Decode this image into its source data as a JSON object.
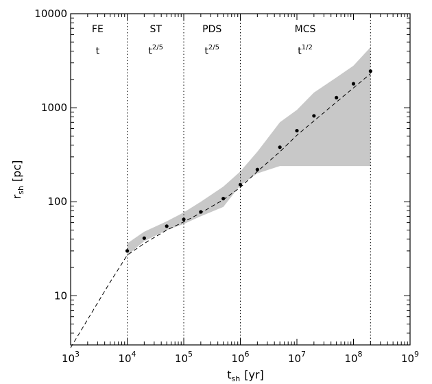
{
  "chart_data": {
    "type": "scatter",
    "title": "",
    "x_scale": "log",
    "y_scale": "log",
    "xlim": [
      1000,
      1000000000
    ],
    "ylim": [
      3,
      10000
    ],
    "x_ticks": [
      {
        "value": 1000,
        "mantissa": "10",
        "exp": "3"
      },
      {
        "value": 10000,
        "mantissa": "10",
        "exp": "4"
      },
      {
        "value": 100000,
        "mantissa": "10",
        "exp": "5"
      },
      {
        "value": 1000000,
        "mantissa": "10",
        "exp": "6"
      },
      {
        "value": 10000000,
        "mantissa": "10",
        "exp": "7"
      },
      {
        "value": 100000000,
        "mantissa": "10",
        "exp": "8"
      },
      {
        "value": 1000000000,
        "mantissa": "10",
        "exp": "9"
      }
    ],
    "y_ticks": [
      {
        "value": 10,
        "label": "10"
      },
      {
        "value": 100,
        "label": "100"
      },
      {
        "value": 1000,
        "label": "1000"
      },
      {
        "value": 10000,
        "label": "10000"
      }
    ],
    "xlabel": {
      "main": "t",
      "sub": "sh",
      "unit": "[yr]"
    },
    "ylabel": {
      "main": "r",
      "sub": "sh",
      "unit": "[pc]"
    },
    "phase_boundaries": [
      10000,
      100000,
      1000000,
      200000000
    ],
    "phases": [
      {
        "name": "FE",
        "law": "t",
        "law_exp": "",
        "x": 3000
      },
      {
        "name": "ST",
        "law": "t",
        "law_exp": "2/5",
        "x": 32000
      },
      {
        "name": "PDS",
        "law": "t",
        "law_exp": "2/5",
        "x": 316000
      },
      {
        "name": "MCS",
        "law": "t",
        "law_exp": "1/2",
        "x": 14000000
      }
    ],
    "points": {
      "x": [
        10000,
        20000,
        50000,
        100000,
        200000,
        500000,
        1000000,
        2000000,
        5000000,
        10000000,
        20000000,
        50000000,
        100000000,
        200000000
      ],
      "y": [
        30,
        41,
        55,
        65,
        78,
        108,
        152,
        220,
        380,
        570,
        820,
        1280,
        1800,
        2450
      ]
    },
    "model_line": {
      "x": [
        1000,
        5000,
        10000,
        20000,
        50000,
        100000,
        200000,
        500000,
        1000000,
        2000000,
        5000000,
        10000000,
        50000000,
        200000000
      ],
      "y": [
        2.8,
        14,
        27,
        36,
        50,
        61,
        76,
        105,
        142,
        210,
        340,
        510,
        1150,
        2300
      ]
    },
    "band": {
      "upper": {
        "x": [
          10000,
          20000,
          50000,
          100000,
          200000,
          500000,
          1000000,
          2000000,
          5000000,
          10000000,
          20000000,
          50000000,
          100000000,
          200000000
        ],
        "y": [
          36,
          48,
          62,
          77,
          100,
          145,
          210,
          340,
          700,
          950,
          1450,
          2100,
          2800,
          4400
        ]
      },
      "lower": {
        "x": [
          200000000,
          5000000,
          2000000,
          1000000,
          500000,
          200000,
          100000,
          50000,
          20000,
          10000
        ],
        "y": [
          240,
          240,
          200,
          150,
          88,
          70,
          58,
          50,
          38,
          27
        ]
      }
    },
    "colors": {
      "band": "#c8c8c8",
      "points": "#000000",
      "lines": "#000000"
    }
  }
}
